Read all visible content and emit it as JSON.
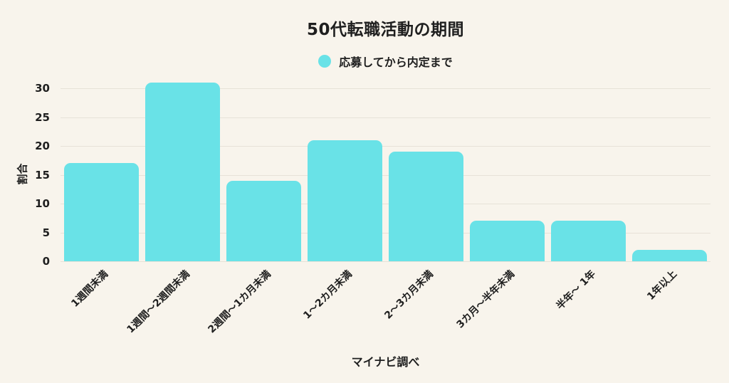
{
  "chart_data": {
    "type": "bar",
    "title": "50代転職活動の期間",
    "legend": {
      "label": "応募してから内定まで",
      "position": "top"
    },
    "categories": [
      "1週間未満",
      "1週間〜2週間未満",
      "2週間〜1カ月未満",
      "1〜2カ月未満",
      "2〜3カ月未満",
      "3カ月〜半年未満",
      "半年〜 1年",
      "1年以上"
    ],
    "series": [
      {
        "name": "応募してから内定まで",
        "values": [
          17,
          31,
          14,
          21,
          19,
          7,
          7,
          2
        ]
      }
    ],
    "ylabel": "割合",
    "xlabel": "マイナビ調べ",
    "yticks": [
      0,
      5,
      10,
      15,
      20,
      25,
      30
    ],
    "ylim": [
      0,
      31.7
    ],
    "grid": true
  },
  "colors": {
    "background": "#f8f4ec",
    "bar": "#69e2e7",
    "grid": "#e7e2d8",
    "text": "#1f1f1f"
  }
}
